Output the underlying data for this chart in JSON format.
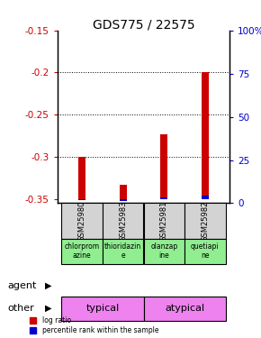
{
  "title": "GDS775 / 22575",
  "samples": [
    "GSM25980",
    "GSM25983",
    "GSM25981",
    "GSM25982"
  ],
  "log_ratio": [
    -0.3,
    -0.333,
    -0.273,
    -0.2
  ],
  "percentile_rank": [
    2.0,
    1.5,
    3.5,
    4.5
  ],
  "ylim_left": [
    -0.355,
    -0.15
  ],
  "ylim_right": [
    0,
    100
  ],
  "yticks_left": [
    -0.35,
    -0.3,
    -0.25,
    -0.2,
    -0.15
  ],
  "yticks_right": [
    0,
    25,
    50,
    75,
    100
  ],
  "ytick_labels_left": [
    "-0.35",
    "-0.3",
    "-0.25",
    "-0.2",
    "-0.15"
  ],
  "ytick_labels_right": [
    "0",
    "25",
    "50",
    "75",
    "100%"
  ],
  "bar_bottom": -0.35,
  "agent_labels": [
    "chlorprom\nazine",
    "thioridazin\ne",
    "olanzap\nine",
    "quetiapi\nne"
  ],
  "agent_group1": "typical",
  "agent_group2": "atypical",
  "group_color": "#ee82ee",
  "red_color": "#cc0000",
  "blue_color": "#0000cc",
  "bg_color": "#ffffff",
  "label_color_left": "#cc0000",
  "label_color_right": "#0000cc",
  "grid_yticks": [
    -0.2,
    -0.25,
    -0.3
  ]
}
